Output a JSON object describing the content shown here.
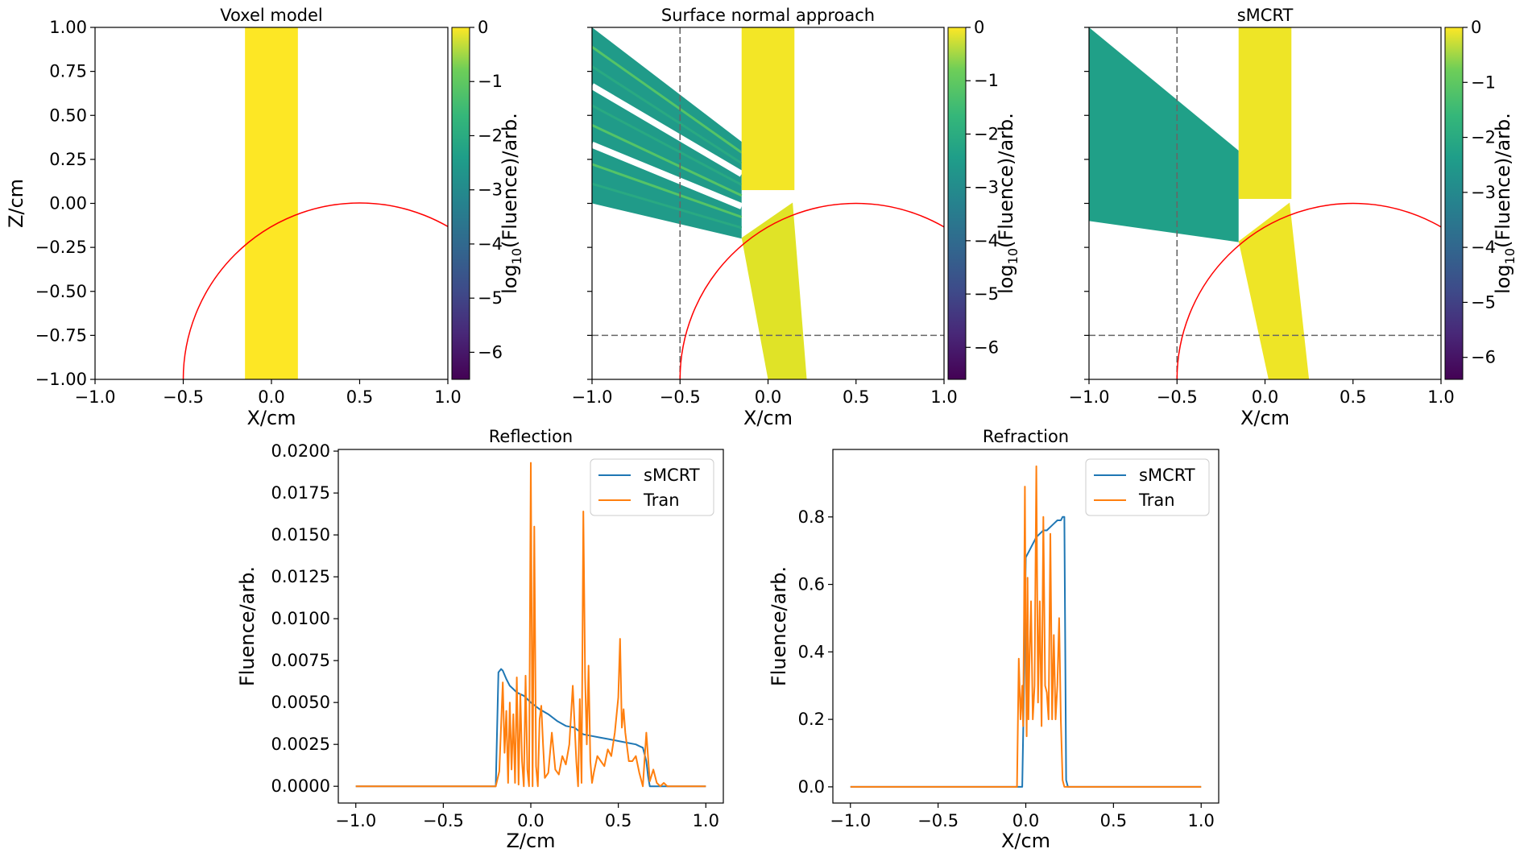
{
  "chart_data": [
    {
      "type": "heatmap",
      "title": "Voxel model",
      "xlabel": "X/cm",
      "ylabel": "Z/cm",
      "xlim": [
        -1.0,
        1.0
      ],
      "ylim": [
        -1.0,
        1.0
      ],
      "xticks": [
        "−1.0",
        "−0.5",
        "0.0",
        "0.5",
        "1.0"
      ],
      "yticks": [
        "−1.00",
        "−0.75",
        "−0.50",
        "−0.25",
        "0.00",
        "0.25",
        "0.50",
        "0.75",
        "1.00"
      ],
      "beam": {
        "x_min": -0.15,
        "x_max": 0.15,
        "log_fluence": 0
      },
      "interface_circle": {
        "center_x": 0.5,
        "center_z": -1.0,
        "radius": 1.0
      },
      "colorbar": {
        "label_prefix": "log",
        "label_sub": "10",
        "label_suffix": "(Fluence)/arb.",
        "ticks": [
          "0",
          "−1",
          "−2",
          "−3",
          "−4",
          "−5",
          "−6"
        ],
        "range": [
          -6.5,
          0
        ]
      }
    },
    {
      "type": "heatmap",
      "title": "Surface normal approach",
      "xlabel": "X/cm",
      "xlim": [
        -1.0,
        1.0
      ],
      "ylim": [
        -1.0,
        1.0
      ],
      "xticks": [
        "−1.0",
        "−0.5",
        "0.0",
        "0.5",
        "1.0"
      ],
      "incident_beam": {
        "x_min": -0.15,
        "x_max": 0.15,
        "z_top": 1.0,
        "log_fluence": -0.1
      },
      "reflected_beam": {
        "from_x": -0.15,
        "to_x": -1.0,
        "upper_z_at_interface": 0.35,
        "lower_z_at_interface": -0.2,
        "upper_z_at_left": 1.0,
        "lower_z_at_left": 0.0,
        "log_fluence": -3
      },
      "refracted_beam": {
        "top_x_min": -0.15,
        "top_x_max": 0.14,
        "bottom_x_min": 0.0,
        "bottom_x_max": 0.22,
        "log_fluence": -0.3
      },
      "guide_lines": {
        "x": -0.5,
        "z": -0.75
      },
      "interface_circle": {
        "center_x": 0.5,
        "center_z": -1.0,
        "radius": 1.0
      },
      "colorbar": {
        "label_prefix": "log",
        "label_sub": "10",
        "label_suffix": "(Fluence)/arb.",
        "ticks": [
          "0",
          "−1",
          "−2",
          "−3",
          "−4",
          "−5",
          "−6"
        ],
        "range": [
          -6.6,
          0
        ]
      }
    },
    {
      "type": "heatmap",
      "title": "sMCRT",
      "xlabel": "X/cm",
      "xlim": [
        -1.0,
        1.0
      ],
      "ylim": [
        -1.0,
        1.0
      ],
      "xticks": [
        "−1.0",
        "−0.5",
        "0.0",
        "0.5",
        "1.0"
      ],
      "incident_beam": {
        "x_min": -0.15,
        "x_max": 0.15,
        "z_top": 1.0,
        "log_fluence": -0.15
      },
      "reflected_beam": {
        "from_x": -0.15,
        "to_x": -1.0,
        "upper_z_at_interface": 0.3,
        "lower_z_at_interface": -0.22,
        "upper_z_at_left": 1.0,
        "lower_z_at_left": -0.1,
        "log_fluence": -2.8
      },
      "refracted_beam": {
        "top_x_min": -0.15,
        "top_x_max": 0.14,
        "bottom_x_min": 0.02,
        "bottom_x_max": 0.25,
        "log_fluence": -0.15
      },
      "guide_lines": {
        "x": -0.5,
        "z": -0.75
      },
      "interface_circle": {
        "center_x": 0.5,
        "center_z": -1.0,
        "radius": 1.0
      },
      "colorbar": {
        "label_prefix": "log",
        "label_sub": "10",
        "label_suffix": "(Fluence)/arb.",
        "ticks": [
          "0",
          "−1",
          "−2",
          "−3",
          "−4",
          "−5",
          "−6"
        ],
        "range": [
          -6.4,
          0
        ]
      }
    },
    {
      "type": "line",
      "title": "Reflection",
      "xlabel": "Z/cm",
      "ylabel": "Fluence/arb.",
      "xlim": [
        -1.1,
        1.1
      ],
      "ylim": [
        -0.001,
        0.0201
      ],
      "xticks": [
        "−1.0",
        "−0.5",
        "0.0",
        "0.5",
        "1.0"
      ],
      "yticks": [
        "0.0000",
        "0.0025",
        "0.0050",
        "0.0075",
        "0.0100",
        "0.0125",
        "0.0150",
        "0.0175",
        "0.0200"
      ],
      "legend": "top-right",
      "series": [
        {
          "name": "sMCRT",
          "color": "#1f77b4",
          "x": [
            -1.0,
            -0.2,
            -0.185,
            -0.17,
            -0.16,
            -0.14,
            -0.12,
            -0.1,
            -0.08,
            -0.06,
            -0.04,
            -0.02,
            0.0,
            0.05,
            0.1,
            0.15,
            0.2,
            0.25,
            0.3,
            0.35,
            0.4,
            0.45,
            0.5,
            0.55,
            0.6,
            0.62,
            0.64,
            0.66,
            0.67,
            0.68,
            1.0
          ],
          "values": [
            0,
            0,
            0.0068,
            0.007,
            0.0069,
            0.0064,
            0.006,
            0.0058,
            0.0056,
            0.0055,
            0.0054,
            0.0052,
            0.005,
            0.0046,
            0.0043,
            0.0039,
            0.0036,
            0.0035,
            0.0031,
            0.003,
            0.0029,
            0.0028,
            0.0027,
            0.0026,
            0.0025,
            0.0024,
            0.0023,
            0.0015,
            0.0006,
            0.0,
            0.0
          ]
        },
        {
          "name": "Tran",
          "color": "#ff7f0e",
          "x": [
            -1.0,
            -0.2,
            -0.18,
            -0.16,
            -0.15,
            -0.14,
            -0.13,
            -0.12,
            -0.11,
            -0.1,
            -0.09,
            -0.08,
            -0.07,
            -0.06,
            -0.05,
            -0.04,
            -0.03,
            -0.02,
            -0.01,
            0.0,
            0.01,
            0.02,
            0.03,
            0.04,
            0.05,
            0.06,
            0.07,
            0.08,
            0.1,
            0.12,
            0.14,
            0.16,
            0.18,
            0.2,
            0.22,
            0.24,
            0.26,
            0.27,
            0.28,
            0.29,
            0.3,
            0.31,
            0.32,
            0.33,
            0.34,
            0.35,
            0.36,
            0.38,
            0.4,
            0.42,
            0.44,
            0.46,
            0.48,
            0.5,
            0.51,
            0.52,
            0.53,
            0.54,
            0.56,
            0.58,
            0.6,
            0.62,
            0.64,
            0.66,
            0.68,
            0.7,
            0.72,
            0.74,
            0.76,
            0.78,
            1.0
          ],
          "values": [
            0,
            0,
            0.0009,
            0.0062,
            0.002,
            0.0045,
            0.0002,
            0.005,
            0.001,
            0.0043,
            0.0002,
            0.0065,
            0.0001,
            0.0055,
            0.0015,
            0.0,
            0.0066,
            0.001,
            0.0,
            0.0193,
            0.0,
            0.0155,
            0.0012,
            0.0,
            0.004,
            0.0048,
            0.0025,
            0.0005,
            0.0008,
            0.0032,
            0.001,
            0.0007,
            0.0018,
            0.0013,
            0.0025,
            0.006,
            0.0015,
            0.0,
            0.0052,
            0.0002,
            0.0164,
            0.0065,
            0.0025,
            0.0072,
            0.0015,
            0.0002,
            0.0008,
            0.0018,
            0.0015,
            0.0012,
            0.0022,
            0.0018,
            0.0032,
            0.0053,
            0.0088,
            0.0035,
            0.0046,
            0.0032,
            0.0015,
            0.0015,
            0.0018,
            0.0008,
            0.0,
            0.0032,
            0.0003,
            0.001,
            0.0002,
            0.0,
            0.0002,
            0.0,
            0.0
          ]
        }
      ]
    },
    {
      "type": "line",
      "title": "Refraction",
      "xlabel": "X/cm",
      "ylabel": "Fluence/arb.",
      "xlim": [
        -1.1,
        1.1
      ],
      "ylim": [
        -0.048,
        1.0
      ],
      "xticks": [
        "−1.0",
        "−0.5",
        "0.0",
        "0.5",
        "1.0"
      ],
      "yticks": [
        "0.0",
        "0.2",
        "0.4",
        "0.6",
        "0.8"
      ],
      "legend": "top-right",
      "series": [
        {
          "name": "sMCRT",
          "color": "#1f77b4",
          "x": [
            -1.0,
            -0.02,
            -0.01,
            0.0,
            0.02,
            0.04,
            0.06,
            0.08,
            0.1,
            0.12,
            0.14,
            0.16,
            0.18,
            0.2,
            0.21,
            0.22,
            0.23,
            0.24,
            1.0
          ],
          "values": [
            0,
            0,
            0.3,
            0.68,
            0.7,
            0.72,
            0.74,
            0.75,
            0.76,
            0.76,
            0.77,
            0.78,
            0.79,
            0.79,
            0.8,
            0.8,
            0.02,
            0.0,
            0.0
          ]
        },
        {
          "name": "Tran",
          "color": "#ff7f0e",
          "x": [
            -1.0,
            -0.05,
            -0.04,
            -0.03,
            -0.02,
            -0.015,
            -0.01,
            -0.005,
            0.0,
            0.005,
            0.01,
            0.015,
            0.02,
            0.03,
            0.04,
            0.05,
            0.06,
            0.07,
            0.08,
            0.09,
            0.1,
            0.11,
            0.12,
            0.13,
            0.14,
            0.15,
            0.16,
            0.17,
            0.18,
            0.19,
            0.2,
            0.21,
            0.22,
            0.23,
            1.0
          ],
          "values": [
            0,
            0,
            0.38,
            0.2,
            0.3,
            0.18,
            0.5,
            0.89,
            0.42,
            0.15,
            0.62,
            0.2,
            0.35,
            0.55,
            0.2,
            0.3,
            0.95,
            0.25,
            0.55,
            0.18,
            0.8,
            0.3,
            0.28,
            0.2,
            0.75,
            0.2,
            0.45,
            0.2,
            0.3,
            0.5,
            0.2,
            0.02,
            0.0,
            0.0,
            0.0
          ]
        }
      ]
    }
  ]
}
